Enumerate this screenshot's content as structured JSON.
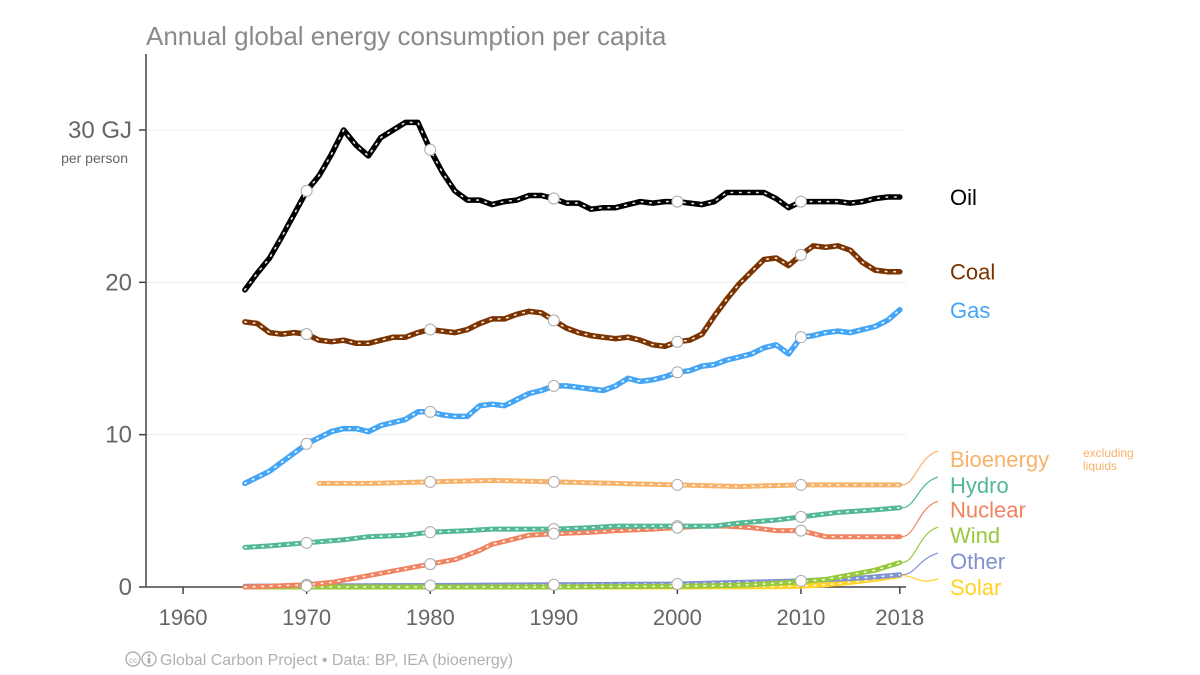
{
  "chart_data": {
    "type": "line",
    "title": "Annual global energy consumption per capita",
    "y_unit_label": "GJ",
    "y_unit_sub": "per person",
    "ylim": [
      0,
      35
    ],
    "xlim": [
      1957,
      2019
    ],
    "y_ticks": [
      {
        "value": 0,
        "label": "0"
      },
      {
        "value": 10,
        "label": "10"
      },
      {
        "value": 20,
        "label": "20"
      },
      {
        "value": 30,
        "label": "30 GJ"
      }
    ],
    "x_ticks": [
      {
        "value": 1960,
        "label": "1960"
      },
      {
        "value": 1970,
        "label": "1970"
      },
      {
        "value": 1980,
        "label": "1980"
      },
      {
        "value": 1990,
        "label": "1990"
      },
      {
        "value": 2000,
        "label": "2000"
      },
      {
        "value": 2010,
        "label": "2010"
      },
      {
        "value": 2018,
        "label": "2018"
      }
    ],
    "grid": true,
    "series": [
      {
        "name": "Oil",
        "color": "#000000",
        "label_value": 25.6,
        "x": [
          1965,
          1966,
          1967,
          1968,
          1969,
          1970,
          1971,
          1972,
          1973,
          1974,
          1975,
          1976,
          1977,
          1978,
          1979,
          1980,
          1981,
          1982,
          1983,
          1984,
          1985,
          1986,
          1987,
          1988,
          1989,
          1990,
          1991,
          1992,
          1993,
          1994,
          1995,
          1996,
          1997,
          1998,
          1999,
          2000,
          2001,
          2002,
          2003,
          2004,
          2005,
          2006,
          2007,
          2008,
          2009,
          2010,
          2011,
          2012,
          2013,
          2014,
          2015,
          2016,
          2017,
          2018
        ],
        "values": [
          19.5,
          20.6,
          21.6,
          23.0,
          24.5,
          26.0,
          27.0,
          28.4,
          30.0,
          29.0,
          28.3,
          29.5,
          30.0,
          30.5,
          30.5,
          28.7,
          27.2,
          26.0,
          25.4,
          25.4,
          25.1,
          25.3,
          25.4,
          25.7,
          25.7,
          25.5,
          25.2,
          25.2,
          24.8,
          24.9,
          24.9,
          25.1,
          25.3,
          25.2,
          25.3,
          25.3,
          25.2,
          25.1,
          25.3,
          25.9,
          25.9,
          25.9,
          25.9,
          25.5,
          24.9,
          25.3,
          25.3,
          25.3,
          25.3,
          25.2,
          25.3,
          25.5,
          25.6,
          25.6
        ]
      },
      {
        "name": "Coal",
        "color": "#7b3300",
        "label_value": 20.7,
        "x": [
          1965,
          1966,
          1967,
          1968,
          1969,
          1970,
          1971,
          1972,
          1973,
          1974,
          1975,
          1976,
          1977,
          1978,
          1979,
          1980,
          1981,
          1982,
          1983,
          1984,
          1985,
          1986,
          1987,
          1988,
          1989,
          1990,
          1991,
          1992,
          1993,
          1994,
          1995,
          1996,
          1997,
          1998,
          1999,
          2000,
          2001,
          2002,
          2003,
          2004,
          2005,
          2006,
          2007,
          2008,
          2009,
          2010,
          2011,
          2012,
          2013,
          2014,
          2015,
          2016,
          2017,
          2018
        ],
        "values": [
          17.4,
          17.3,
          16.7,
          16.6,
          16.7,
          16.6,
          16.2,
          16.1,
          16.2,
          16.0,
          16.0,
          16.2,
          16.4,
          16.4,
          16.7,
          16.9,
          16.8,
          16.7,
          16.9,
          17.3,
          17.6,
          17.6,
          17.9,
          18.1,
          18.0,
          17.5,
          17.0,
          16.7,
          16.5,
          16.4,
          16.3,
          16.4,
          16.2,
          15.9,
          15.8,
          16.1,
          16.2,
          16.6,
          17.8,
          18.9,
          19.9,
          20.7,
          21.5,
          21.6,
          21.1,
          21.8,
          22.4,
          22.3,
          22.4,
          22.1,
          21.3,
          20.8,
          20.7,
          20.7
        ]
      },
      {
        "name": "Gas",
        "color": "#45a5f5",
        "label_value": 18.2,
        "x": [
          1965,
          1966,
          1967,
          1968,
          1969,
          1970,
          1971,
          1972,
          1973,
          1974,
          1975,
          1976,
          1977,
          1978,
          1979,
          1980,
          1981,
          1982,
          1983,
          1984,
          1985,
          1986,
          1987,
          1988,
          1989,
          1990,
          1991,
          1992,
          1993,
          1994,
          1995,
          1996,
          1997,
          1998,
          1999,
          2000,
          2001,
          2002,
          2003,
          2004,
          2005,
          2006,
          2007,
          2008,
          2009,
          2010,
          2011,
          2012,
          2013,
          2014,
          2015,
          2016,
          2017,
          2018
        ],
        "values": [
          6.8,
          7.2,
          7.6,
          8.2,
          8.8,
          9.4,
          9.8,
          10.2,
          10.4,
          10.4,
          10.2,
          10.6,
          10.8,
          11.0,
          11.5,
          11.5,
          11.3,
          11.2,
          11.2,
          11.9,
          12.0,
          11.9,
          12.3,
          12.7,
          12.9,
          13.2,
          13.2,
          13.1,
          13.0,
          12.9,
          13.2,
          13.7,
          13.5,
          13.6,
          13.8,
          14.1,
          14.2,
          14.5,
          14.6,
          14.9,
          15.1,
          15.3,
          15.7,
          15.9,
          15.3,
          16.4,
          16.5,
          16.7,
          16.8,
          16.7,
          16.9,
          17.1,
          17.5,
          18.2
        ]
      },
      {
        "name": "Bioenergy",
        "note": "excluding liquids",
        "color": "#f7b26b",
        "label_value": 8.4,
        "x": [
          1971,
          1975,
          1980,
          1985,
          1990,
          1995,
          2000,
          2005,
          2010,
          2015,
          2018
        ],
        "values": [
          6.8,
          6.8,
          6.9,
          7.0,
          6.9,
          6.8,
          6.7,
          6.6,
          6.7,
          6.7,
          6.7
        ]
      },
      {
        "name": "Hydro",
        "color": "#52b896",
        "label_value": 6.7,
        "x": [
          1965,
          1967,
          1970,
          1973,
          1975,
          1978,
          1980,
          1983,
          1985,
          1988,
          1990,
          1993,
          1995,
          1998,
          2000,
          2003,
          2005,
          2008,
          2010,
          2013,
          2015,
          2018
        ],
        "values": [
          2.6,
          2.7,
          2.9,
          3.1,
          3.3,
          3.4,
          3.6,
          3.7,
          3.8,
          3.8,
          3.8,
          3.9,
          4.0,
          4.0,
          4.0,
          4.0,
          4.2,
          4.4,
          4.6,
          4.9,
          5.0,
          5.2
        ]
      },
      {
        "name": "Nuclear",
        "color": "#f08460",
        "label_value": 5.1,
        "x": [
          1965,
          1967,
          1970,
          1972,
          1974,
          1976,
          1978,
          1980,
          1982,
          1984,
          1985,
          1987,
          1988,
          1990,
          1993,
          1995,
          1998,
          2000,
          2002,
          2004,
          2006,
          2008,
          2010,
          2011,
          2012,
          2014,
          2016,
          2018
        ],
        "values": [
          0.0,
          0.05,
          0.15,
          0.3,
          0.6,
          0.9,
          1.2,
          1.5,
          1.8,
          2.4,
          2.8,
          3.2,
          3.4,
          3.5,
          3.6,
          3.7,
          3.8,
          3.9,
          4.0,
          4.0,
          3.9,
          3.7,
          3.7,
          3.5,
          3.3,
          3.3,
          3.3,
          3.3
        ]
      },
      {
        "name": "Wind",
        "color": "#97c93d",
        "label_value": 3.4,
        "x": [
          1965,
          1990,
          2000,
          2004,
          2006,
          2008,
          2010,
          2012,
          2014,
          2016,
          2018
        ],
        "values": [
          0.0,
          0.0,
          0.05,
          0.1,
          0.15,
          0.25,
          0.35,
          0.5,
          0.8,
          1.1,
          1.6
        ]
      },
      {
        "name": "Other",
        "color": "#8192d0",
        "label_value": 1.7,
        "x": [
          1965,
          1980,
          1990,
          2000,
          2005,
          2010,
          2015,
          2018
        ],
        "values": [
          0.05,
          0.1,
          0.15,
          0.2,
          0.3,
          0.4,
          0.6,
          0.8
        ]
      },
      {
        "name": "Solar",
        "color": "#ffd225",
        "label_value": 0.0,
        "x": [
          1965,
          2000,
          2008,
          2010,
          2012,
          2014,
          2016,
          2018
        ],
        "values": [
          0.0,
          0.0,
          0.02,
          0.05,
          0.15,
          0.3,
          0.5,
          0.75
        ]
      }
    ],
    "markers": [
      {
        "series": "Oil",
        "x": [
          1970,
          1980,
          1990,
          2000,
          2010
        ]
      },
      {
        "series": "Coal",
        "x": [
          1970,
          1980,
          1990,
          2000,
          2010
        ]
      },
      {
        "series": "Gas",
        "x": [
          1970,
          1980,
          1990,
          2000,
          2010
        ]
      },
      {
        "series": "Bioenergy",
        "x": [
          1980,
          1990,
          2000,
          2010
        ]
      },
      {
        "series": "Hydro",
        "x": [
          1970,
          1980,
          1990,
          2000,
          2010
        ]
      },
      {
        "series": "Nuclear",
        "x": [
          1970,
          1980,
          1990,
          2000,
          2010
        ]
      },
      {
        "series": "Other",
        "x": [
          1970,
          1980,
          1990,
          2000,
          2010
        ]
      }
    ],
    "footer": "Global Carbon Project  •  Data: BP, IEA (bioenergy)",
    "footer_icons": "cc-by-icons"
  }
}
